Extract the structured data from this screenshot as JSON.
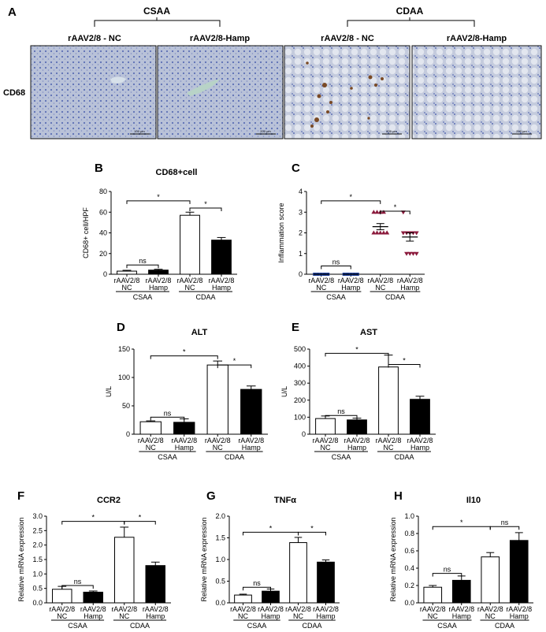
{
  "panel_a": {
    "letter": "A",
    "group_left": "CSAA",
    "group_right": "CDAA",
    "image_titles": [
      "rAAV2/8 - NC",
      "rAAV2/8-Hamp",
      "rAAV2/8 - NC",
      "rAAV2/8-Hamp"
    ],
    "row_label": "CD68",
    "scale_bar_labels": [
      "100 μm",
      "200 μm",
      "200 μm",
      "200 μm"
    ],
    "colors": {
      "tissue": "#b9c2d8",
      "nuclei": "#5d6fb4",
      "stain": "#7a4a25",
      "fat": "#dfe4ee"
    }
  },
  "chart_data": [
    {
      "type": "bar",
      "letter": "B",
      "title": "CD68+cell",
      "ylabel": "CD68+ cell/HPF",
      "categories": [
        "rAAV2/8\nNC",
        "rAAV2/8\nHamp",
        "rAAV2/8\nNC",
        "rAAV2/8\nHamp"
      ],
      "values": [
        3,
        4,
        57,
        33
      ],
      "errors": [
        0.8,
        0.8,
        3,
        2.5
      ],
      "ylim": [
        0,
        80
      ],
      "yticks": [
        0,
        20,
        40,
        60,
        80
      ],
      "groups": [
        "CSAA",
        "CDAA"
      ],
      "sig": [
        {
          "from": 0,
          "to": 2,
          "label": "*",
          "y": 71
        },
        {
          "from": 2,
          "to": 3,
          "label": "*",
          "y": 64
        },
        {
          "from": 0,
          "to": 1,
          "label": "ns",
          "y": 9
        }
      ]
    },
    {
      "type": "scatter",
      "letter": "C",
      "ylabel": "Inflammation score",
      "categories": [
        "rAAV2/8\nNC",
        "rAAV2/8\nHamp",
        "rAAV2/8\nNC",
        "rAAV2/8\nHamp"
      ],
      "points": [
        [
          0,
          0,
          0,
          0,
          0,
          0,
          0,
          0,
          0,
          0
        ],
        [
          0,
          0,
          0,
          0,
          0,
          0,
          0,
          0,
          0,
          0
        ],
        [
          3,
          3,
          3,
          3,
          2,
          2,
          2,
          2,
          2,
          2
        ],
        [
          3,
          2,
          2,
          2,
          2,
          2,
          1,
          1,
          1,
          1
        ]
      ],
      "mean": [
        0,
        0,
        2.3,
        1.8
      ],
      "sem": [
        0,
        0,
        0.15,
        0.2
      ],
      "ylim": [
        0,
        4
      ],
      "yticks": [
        0,
        1,
        2,
        3,
        4
      ],
      "groups": [
        "CSAA",
        "CDAA"
      ],
      "sig": [
        {
          "from": 0,
          "to": 2,
          "label": "*",
          "y": 3.55
        },
        {
          "from": 2,
          "to": 3,
          "label": "*",
          "y": 3.05
        },
        {
          "from": 0,
          "to": 1,
          "label": "ns",
          "y": 0.4
        }
      ]
    },
    {
      "type": "bar",
      "letter": "D",
      "title": "ALT",
      "ylabel": "U/L",
      "categories": [
        "rAAV2/8\nNC",
        "rAAV2/8\nHamp",
        "rAAV2/8\nNC",
        "rAAV2/8\nHamp"
      ],
      "values": [
        22,
        21,
        122,
        79
      ],
      "errors": [
        1.5,
        6,
        7,
        6
      ],
      "ylim": [
        0,
        150
      ],
      "yticks": [
        0,
        50,
        100,
        150
      ],
      "groups": [
        "CSAA",
        "CDAA"
      ],
      "sig": [
        {
          "from": 0,
          "to": 2,
          "label": "*",
          "y": 138
        },
        {
          "from": 2,
          "to": 3,
          "label": "*",
          "y": 122
        },
        {
          "from": 0,
          "to": 1,
          "label": "ns",
          "y": 30
        }
      ]
    },
    {
      "type": "bar",
      "letter": "E",
      "title": "AST",
      "ylabel": "U/L",
      "categories": [
        "rAAV2/8\nNC",
        "rAAV2/8\nHamp",
        "rAAV2/8\nNC",
        "rAAV2/8\nHamp"
      ],
      "values": [
        92,
        84,
        395,
        205
      ],
      "errors": [
        15,
        10,
        70,
        18
      ],
      "ylim": [
        0,
        500
      ],
      "yticks": [
        0,
        100,
        200,
        300,
        400,
        500
      ],
      "groups": [
        "CSAA",
        "CDAA"
      ],
      "sig": [
        {
          "from": 0,
          "to": 2,
          "label": "*",
          "y": 475
        },
        {
          "from": 2,
          "to": 3,
          "label": "*",
          "y": 410
        },
        {
          "from": 0,
          "to": 1,
          "label": "ns",
          "y": 110
        }
      ]
    },
    {
      "type": "bar",
      "letter": "F",
      "title": "CCR2",
      "ylabel": "Relative mRNA expression",
      "categories": [
        "rAAV2/8\nNC",
        "rAAV2/8\nHamp",
        "rAAV2/8\nNC",
        "rAAV2/8\nHamp"
      ],
      "values": [
        0.47,
        0.37,
        2.27,
        1.29
      ],
      "errors": [
        0.1,
        0.04,
        0.35,
        0.12
      ],
      "ylim": [
        0,
        3.0
      ],
      "yticks": [
        0.0,
        0.5,
        1.0,
        1.5,
        2.0,
        2.5,
        3.0
      ],
      "groups": [
        "CSAA",
        "CDAA"
      ],
      "sig": [
        {
          "from": 0,
          "to": 2,
          "label": "*",
          "y": 2.82
        },
        {
          "from": 2,
          "to": 3,
          "label": "*",
          "y": 2.82
        },
        {
          "from": 0,
          "to": 1,
          "label": "ns",
          "y": 0.6
        }
      ]
    },
    {
      "type": "bar",
      "letter": "G",
      "title": "TNFα",
      "ylabel": "Relative mRNA expression",
      "categories": [
        "rAAV2/8\nNC",
        "rAAV2/8\nHamp",
        "rAAV2/8\nNC",
        "rAAV2/8\nHamp"
      ],
      "values": [
        0.18,
        0.27,
        1.39,
        0.94
      ],
      "errors": [
        0.02,
        0.05,
        0.12,
        0.05
      ],
      "ylim": [
        0,
        2.0
      ],
      "yticks": [
        0.0,
        0.5,
        1.0,
        1.5,
        2.0
      ],
      "groups": [
        "CSAA",
        "CDAA"
      ],
      "sig": [
        {
          "from": 0,
          "to": 2,
          "label": "*",
          "y": 1.63
        },
        {
          "from": 2,
          "to": 3,
          "label": "*",
          "y": 1.63
        },
        {
          "from": 0,
          "to": 1,
          "label": "ns",
          "y": 0.36
        }
      ]
    },
    {
      "type": "bar",
      "letter": "H",
      "title": "Il10",
      "ylabel": "Relative mRNA expression",
      "categories": [
        "rAAV2/8\nNC",
        "rAAV2/8\nHamp",
        "rAAV2/8\nNC",
        "rAAV2/8\nHamp"
      ],
      "values": [
        0.18,
        0.26,
        0.53,
        0.72
      ],
      "errors": [
        0.02,
        0.05,
        0.05,
        0.09
      ],
      "ylim": [
        0,
        1.0
      ],
      "yticks": [
        0.0,
        0.2,
        0.4,
        0.6,
        0.8,
        1.0
      ],
      "groups": [
        "CSAA",
        "CDAA"
      ],
      "sig": [
        {
          "from": 0,
          "to": 2,
          "label": "*",
          "y": 0.88
        },
        {
          "from": 2,
          "to": 3,
          "label": "ns",
          "y": 0.88
        },
        {
          "from": 0,
          "to": 1,
          "label": "ns",
          "y": 0.34
        }
      ]
    }
  ]
}
